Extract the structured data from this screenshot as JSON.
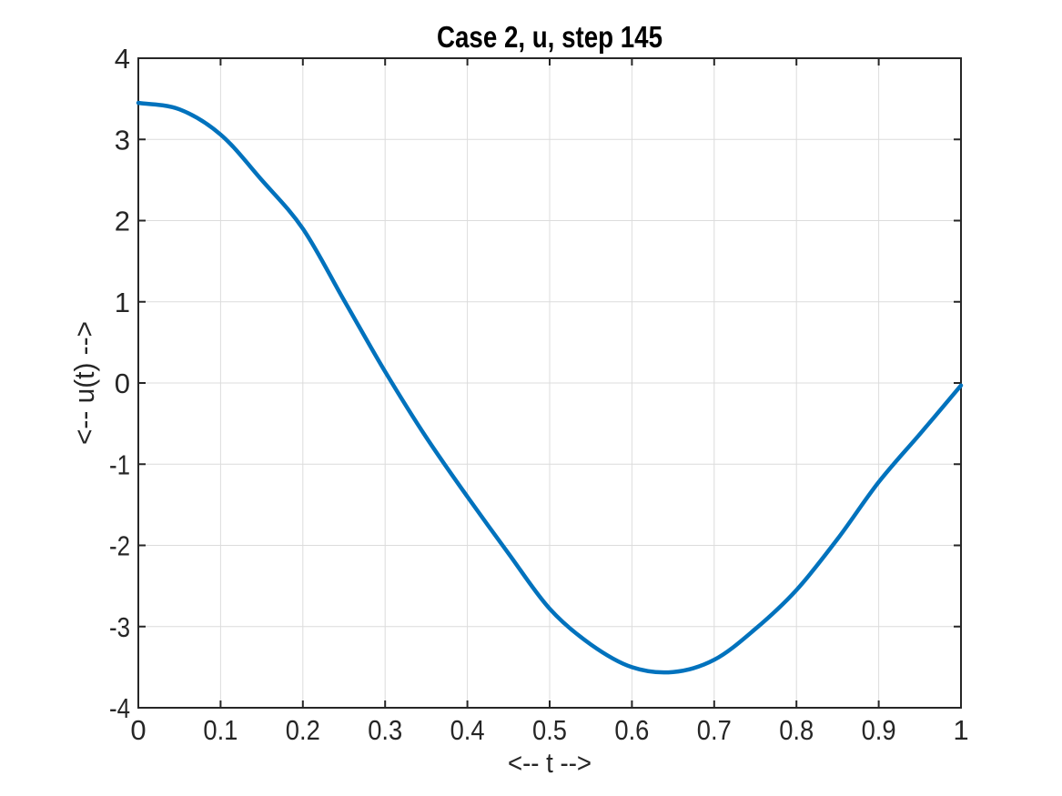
{
  "figure": {
    "background_color": "#ffffff"
  },
  "style": {
    "axis_color": "#262626",
    "grid_color": "#dcdcdc",
    "tick_label_color": "#262626",
    "title_color": "#000000"
  },
  "chart_data": {
    "type": "line",
    "title": "Case 2, u, step 145",
    "xlabel": "<-- t -->",
    "ylabel": "<-- u(t) -->",
    "xlim": [
      0,
      1
    ],
    "ylim": [
      -4,
      4
    ],
    "grid": true,
    "box": true,
    "tick_direction": "in",
    "legend": "none",
    "xticks": {
      "values": [
        0,
        0.1,
        0.2,
        0.3,
        0.4,
        0.5,
        0.6,
        0.7,
        0.8,
        0.9,
        1
      ],
      "labels": [
        "0",
        "0.1",
        "0.2",
        "0.3",
        "0.4",
        "0.5",
        "0.6",
        "0.7",
        "0.8",
        "0.9",
        "1"
      ]
    },
    "yticks": {
      "values": [
        -4,
        -3,
        -2,
        -1,
        0,
        1,
        2,
        3,
        4
      ],
      "labels": [
        "-4",
        "-3",
        "-2",
        "-1",
        "0",
        "1",
        "2",
        "3",
        "4"
      ]
    },
    "series": [
      {
        "name": "u(t)",
        "color": "#0072BD",
        "line_width": 4.5,
        "points": [
          [
            0.0,
            3.45
          ],
          [
            0.05,
            3.37
          ],
          [
            0.1,
            3.06
          ],
          [
            0.15,
            2.5
          ],
          [
            0.2,
            1.9
          ],
          [
            0.25,
            1.02
          ],
          [
            0.3,
            0.14
          ],
          [
            0.35,
            -0.67
          ],
          [
            0.4,
            -1.4
          ],
          [
            0.45,
            -2.1
          ],
          [
            0.5,
            -2.78
          ],
          [
            0.55,
            -3.22
          ],
          [
            0.6,
            -3.5
          ],
          [
            0.65,
            -3.56
          ],
          [
            0.7,
            -3.41
          ],
          [
            0.75,
            -3.03
          ],
          [
            0.8,
            -2.55
          ],
          [
            0.85,
            -1.92
          ],
          [
            0.9,
            -1.22
          ],
          [
            0.95,
            -0.63
          ],
          [
            1.0,
            -0.03
          ]
        ]
      }
    ]
  }
}
